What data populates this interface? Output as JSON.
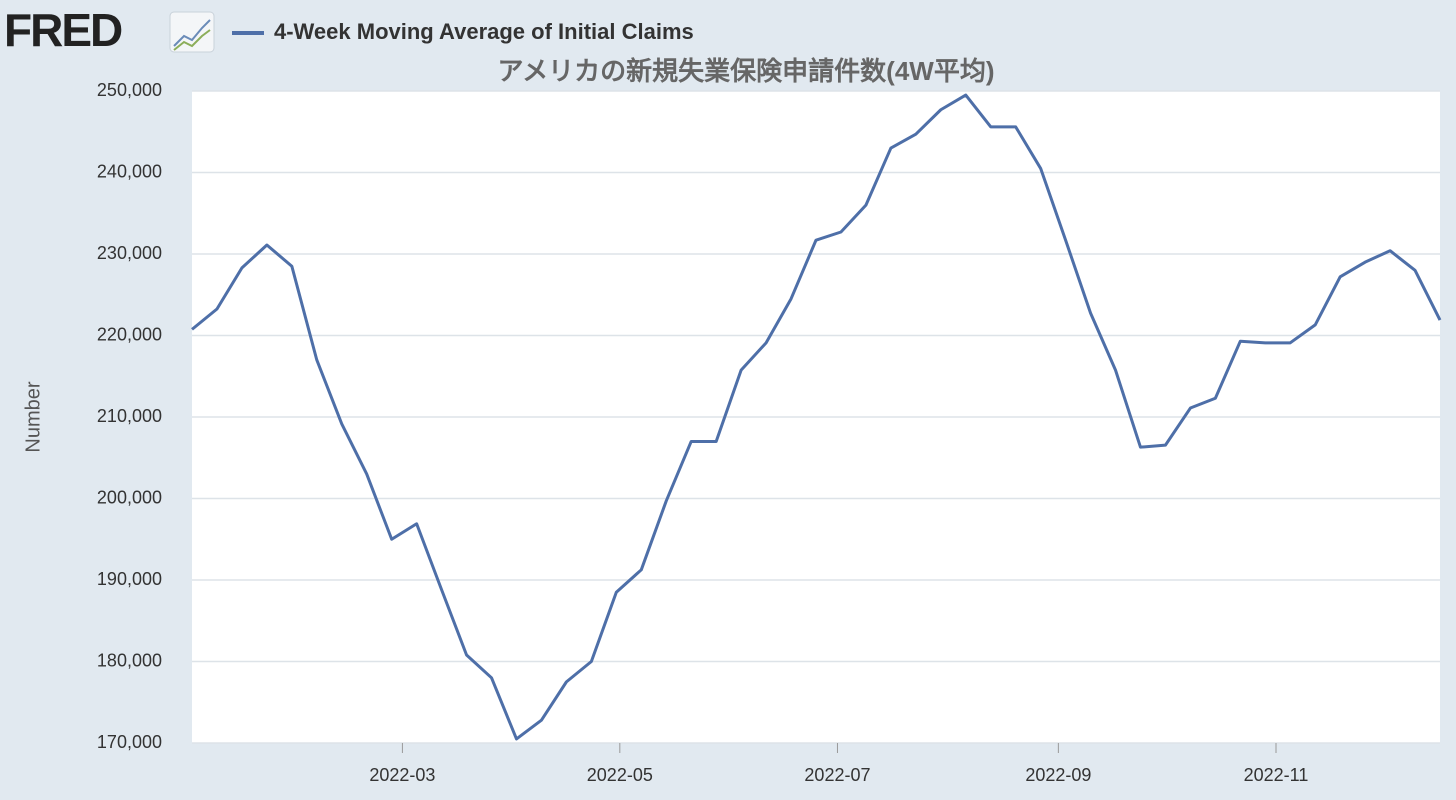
{
  "header": {
    "logo": "FRED"
  },
  "chart_data": {
    "type": "line",
    "title": "アメリカの新規失業保険申請件数(4W平均)",
    "y_label": "Number",
    "categories": [
      null,
      null,
      null,
      null,
      null,
      null,
      null,
      null,
      null,
      null,
      null,
      null,
      null,
      null,
      null,
      null,
      null,
      null,
      null,
      null,
      null,
      null,
      null,
      null,
      null,
      null,
      null,
      null,
      null,
      null,
      null,
      null,
      null,
      null,
      null,
      null,
      null,
      null,
      null,
      null,
      null,
      null,
      null,
      null,
      null,
      null,
      null,
      null,
      null,
      null,
      null
    ],
    "series": [
      {
        "name": "4-Week Moving Average of Initial Claims",
        "color": "#4e6fa8",
        "values": [
          220750,
          223250,
          228300,
          231100,
          228500,
          217000,
          209150,
          203000,
          195000,
          196900,
          188800,
          180800,
          178000,
          170500,
          172800,
          177500,
          180000,
          188500,
          191250,
          199700,
          207000,
          207000,
          215750,
          219100,
          224500,
          231700,
          232700,
          236000,
          243000,
          244700,
          247700,
          249500,
          245600,
          245600,
          240500,
          231700,
          222750,
          215750,
          206300,
          206550,
          211100,
          212300,
          219300,
          219100,
          219100,
          221300,
          227200,
          229000,
          230400,
          228000,
          221900
        ]
      }
    ],
    "xlim": [
      0,
      50
    ],
    "xticks": [
      {
        "value": 8.43,
        "label": "2022-03"
      },
      {
        "value": 17.14,
        "label": "2022-05"
      },
      {
        "value": 25.86,
        "label": "2022-07"
      },
      {
        "value": 34.71,
        "label": "2022-09"
      },
      {
        "value": 43.43,
        "label": "2022-11"
      }
    ],
    "ylim": [
      170000,
      250000
    ],
    "yticks": [
      {
        "value": 170000,
        "label": "170,000"
      },
      {
        "value": 180000,
        "label": "180,000"
      },
      {
        "value": 190000,
        "label": "190,000"
      },
      {
        "value": 200000,
        "label": "200,000"
      },
      {
        "value": 210000,
        "label": "210,000"
      },
      {
        "value": 220000,
        "label": "220,000"
      },
      {
        "value": 230000,
        "label": "230,000"
      },
      {
        "value": 240000,
        "label": "240,000"
      },
      {
        "value": 250000,
        "label": "250,000"
      }
    ],
    "grid": true
  }
}
